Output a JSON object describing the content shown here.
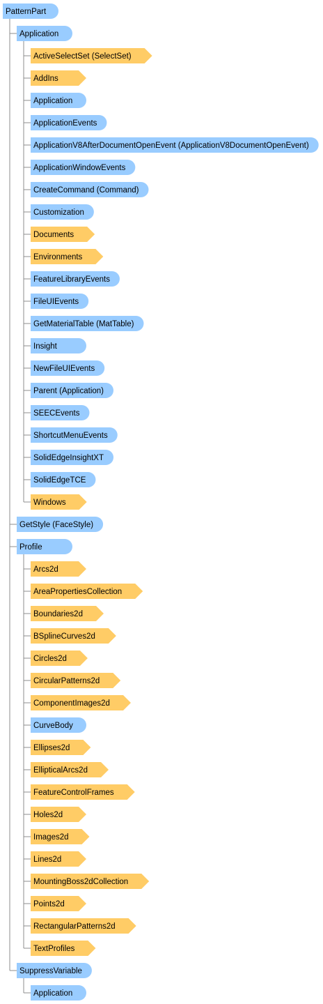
{
  "colors": {
    "object": "#99ccff",
    "collection": "#ffcc66"
  },
  "tree": {
    "label": "PatternPart",
    "kind": "object",
    "children": [
      {
        "label": "Application",
        "kind": "object",
        "children": [
          {
            "label": "ActiveSelectSet (SelectSet)",
            "kind": "collection"
          },
          {
            "label": "AddIns",
            "kind": "collection"
          },
          {
            "label": "Application",
            "kind": "object"
          },
          {
            "label": "ApplicationEvents",
            "kind": "object"
          },
          {
            "label": "ApplicationV8AfterDocumentOpenEvent (ApplicationV8DocumentOpenEvent)",
            "kind": "object"
          },
          {
            "label": "ApplicationWindowEvents",
            "kind": "object"
          },
          {
            "label": "CreateCommand (Command)",
            "kind": "object"
          },
          {
            "label": "Customization",
            "kind": "object"
          },
          {
            "label": "Documents",
            "kind": "collection"
          },
          {
            "label": "Environments",
            "kind": "collection"
          },
          {
            "label": "FeatureLibraryEvents",
            "kind": "object"
          },
          {
            "label": "FileUIEvents",
            "kind": "object"
          },
          {
            "label": "GetMaterialTable (MatTable)",
            "kind": "object"
          },
          {
            "label": "Insight",
            "kind": "object"
          },
          {
            "label": "NewFileUIEvents",
            "kind": "object"
          },
          {
            "label": "Parent (Application)",
            "kind": "object"
          },
          {
            "label": "SEECEvents",
            "kind": "object"
          },
          {
            "label": "ShortcutMenuEvents",
            "kind": "object"
          },
          {
            "label": "SolidEdgeInsightXT",
            "kind": "object"
          },
          {
            "label": "SolidEdgeTCE",
            "kind": "object"
          },
          {
            "label": "Windows",
            "kind": "collection"
          }
        ]
      },
      {
        "label": "GetStyle (FaceStyle)",
        "kind": "object"
      },
      {
        "label": "Profile",
        "kind": "object",
        "children": [
          {
            "label": "Arcs2d",
            "kind": "collection"
          },
          {
            "label": "AreaPropertiesCollection",
            "kind": "collection"
          },
          {
            "label": "Boundaries2d",
            "kind": "collection"
          },
          {
            "label": "BSplineCurves2d",
            "kind": "collection"
          },
          {
            "label": "Circles2d",
            "kind": "collection"
          },
          {
            "label": "CircularPatterns2d",
            "kind": "collection"
          },
          {
            "label": "ComponentImages2d",
            "kind": "collection"
          },
          {
            "label": "CurveBody",
            "kind": "object"
          },
          {
            "label": "Ellipses2d",
            "kind": "collection"
          },
          {
            "label": "EllipticalArcs2d",
            "kind": "collection"
          },
          {
            "label": "FeatureControlFrames",
            "kind": "collection"
          },
          {
            "label": "Holes2d",
            "kind": "collection"
          },
          {
            "label": "Images2d",
            "kind": "collection"
          },
          {
            "label": "Lines2d",
            "kind": "collection"
          },
          {
            "label": "MountingBoss2dCollection",
            "kind": "collection"
          },
          {
            "label": "Points2d",
            "kind": "collection"
          },
          {
            "label": "RectangularPatterns2d",
            "kind": "collection"
          },
          {
            "label": "TextProfiles",
            "kind": "collection"
          }
        ]
      },
      {
        "label": "SuppressVariable",
        "kind": "object",
        "children": [
          {
            "label": "Application",
            "kind": "object"
          }
        ]
      }
    ]
  }
}
